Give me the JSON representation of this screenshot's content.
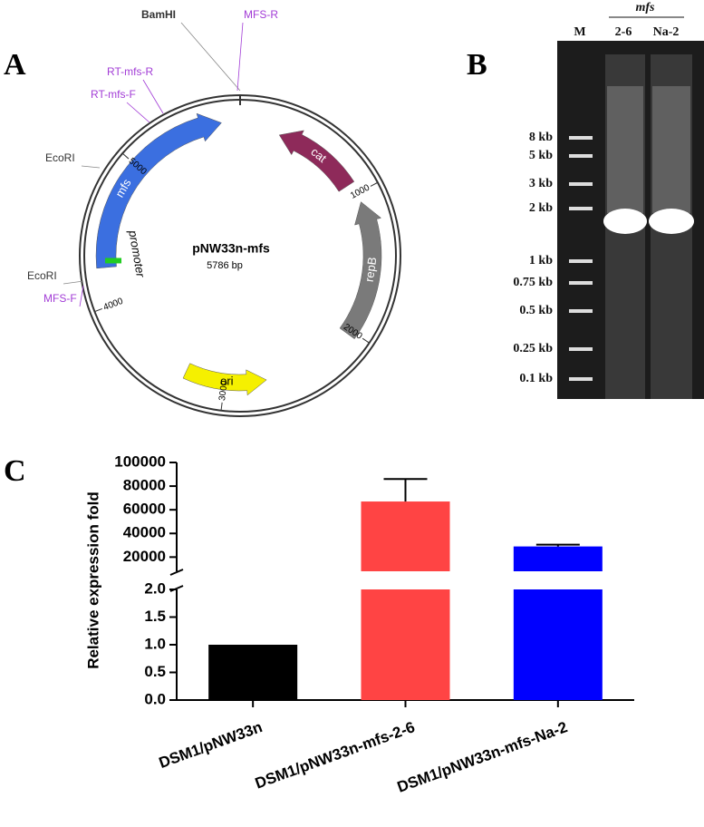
{
  "panel_a": {
    "letter": "A",
    "plasmid": "pNW33n-mfs",
    "size": "5786 bp",
    "features": [
      "mfs",
      "cat",
      "repB",
      "ori",
      "promoter"
    ],
    "sites": [
      "BamHI",
      "MFS-R",
      "RT-mfs-R",
      "RT-mfs-F",
      "EcoRI",
      "EcoRI",
      "MFS-F"
    ],
    "coordinates": [
      1000,
      2000,
      3000,
      4000,
      5000
    ]
  },
  "panel_b": {
    "letter": "B",
    "group": "mfs",
    "lanes": [
      "M",
      "2-6",
      "Na-2"
    ],
    "markers": [
      "8 kb",
      "5 kb",
      "3 kb",
      "2 kb",
      "1 kb",
      "0.75 kb",
      "0.5 kb",
      "0.25 kb",
      "0.1 kb"
    ]
  },
  "panel_c": {
    "letter": "C"
  },
  "chart_data": {
    "type": "bar",
    "y_label": "Relative expression fold",
    "categories": [
      "DSM1/pNW33n",
      "DSM1/pNW33n-mfs-2-6",
      "DSM1/pNW33n-mfs-Na-2"
    ],
    "values": [
      1,
      67000,
      29000
    ],
    "errors": [
      null,
      19000,
      1500
    ],
    "colors": [
      "#000000",
      "#ff4444",
      "#0000ff"
    ],
    "y_segments": [
      {
        "ylim": [
          0,
          2
        ],
        "yticks": [
          {
            "value": 0,
            "label": "0.0"
          },
          {
            "value": 0.5,
            "label": "0.5"
          },
          {
            "value": 1,
            "label": "1.0"
          },
          {
            "value": 1.5,
            "label": "1.5"
          },
          {
            "value": 2,
            "label": "2.0"
          }
        ]
      },
      {
        "ylim": [
          8000,
          100000
        ],
        "yticks": [
          20000,
          40000,
          60000,
          80000,
          100000
        ]
      }
    ]
  }
}
